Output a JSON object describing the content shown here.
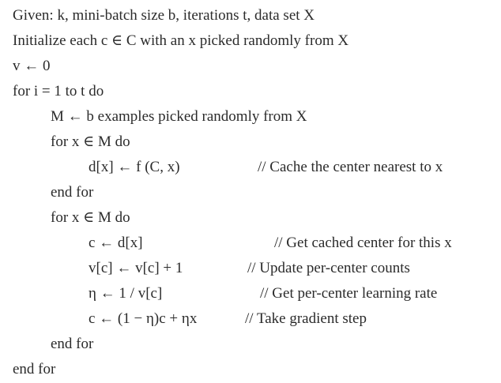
{
  "algorithm": {
    "lines": [
      {
        "text": "Given: k, mini-batch size b, iterations t, data set X",
        "comment": ""
      },
      {
        "text": "Initialize each c ∈ C with an x picked randomly from X",
        "comment": ""
      },
      {
        "text": "v ← 0",
        "comment": ""
      },
      {
        "text": "for i = 1 to t do",
        "comment": ""
      },
      {
        "text": "M ← b examples picked randomly from X",
        "comment": ""
      },
      {
        "text": "for x ∈ M do",
        "comment": ""
      },
      {
        "text": "d[x] ← f (C, x)",
        "comment": "// Cache the center nearest to x"
      },
      {
        "text": "end for",
        "comment": ""
      },
      {
        "text": "for x ∈ M do",
        "comment": ""
      },
      {
        "text": "c ← d[x]",
        "comment": "// Get cached center for this x"
      },
      {
        "text": "v[c] ← v[c] + 1",
        "comment": "// Update per-center counts"
      },
      {
        "text": "η ← 1 / v[c]",
        "comment": "// Get per-center learning rate"
      },
      {
        "text": "c ← (1 − η)c + ηx",
        "comment": "// Take gradient step"
      },
      {
        "text": "end for",
        "comment": ""
      },
      {
        "text": "end for",
        "comment": ""
      }
    ]
  }
}
